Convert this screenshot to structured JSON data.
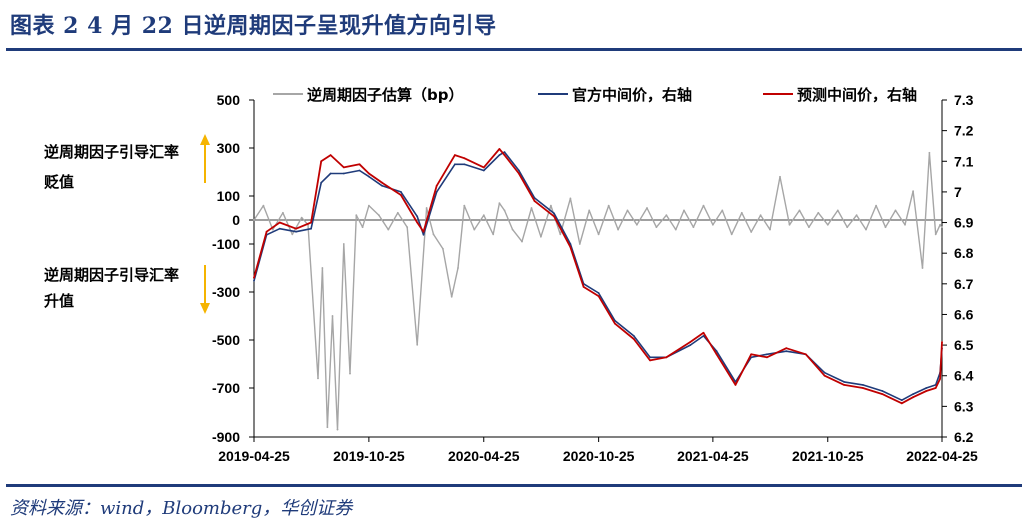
{
  "header": {
    "title": "图表 2   4 月 22 日逆周期因子呈现升值方向引导"
  },
  "footer": {
    "source": "资料来源：wind，Bloomberg，华创证券"
  },
  "chart_data": {
    "type": "line",
    "colors": {
      "gray": "#a6a6a6",
      "navy": "#1f3b7a",
      "red": "#c00000",
      "arrow": "#f5b400"
    },
    "left_axis": {
      "ticks": [
        500,
        300,
        100,
        0,
        -100,
        -300,
        -500,
        -700,
        -900
      ],
      "ylim": [
        -900,
        500
      ]
    },
    "right_axis": {
      "ticks": [
        7.3,
        7.2,
        7.1,
        7.0,
        6.9,
        6.8,
        6.7,
        6.6,
        6.5,
        6.4,
        6.3,
        6.2
      ],
      "ylim": [
        6.2,
        7.3
      ]
    },
    "x_ticks": [
      "2019-04-25",
      "2019-10-25",
      "2020-04-25",
      "2020-10-25",
      "2021-04-25",
      "2021-10-25",
      "2022-04-25"
    ],
    "legend": [
      "逆周期因子估算（bp）",
      "官方中间价，右轴",
      "预测中间价，右轴"
    ],
    "annotations": {
      "depreciation": [
        "逆周期因子引导汇率",
        "贬值"
      ],
      "appreciation": [
        "逆周期因子引导汇率",
        "升值"
      ]
    },
    "series": [
      {
        "name": "官方中间价，右轴",
        "axis": "right",
        "x": [
          "2019-04-25",
          "2019-05-15",
          "2019-06-05",
          "2019-07-01",
          "2019-07-25",
          "2019-08-10",
          "2019-08-25",
          "2019-09-15",
          "2019-10-10",
          "2019-10-25",
          "2019-11-15",
          "2019-12-15",
          "2020-01-10",
          "2020-01-20",
          "2020-02-10",
          "2020-03-10",
          "2020-03-25",
          "2020-04-25",
          "2020-05-20",
          "2020-05-28",
          "2020-06-20",
          "2020-07-15",
          "2020-08-15",
          "2020-09-10",
          "2020-10-01",
          "2020-10-25",
          "2020-11-20",
          "2020-12-20",
          "2021-01-15",
          "2021-02-10",
          "2021-03-20",
          "2021-04-10",
          "2021-05-01",
          "2021-05-31",
          "2021-06-25",
          "2021-07-20",
          "2021-08-20",
          "2021-09-20",
          "2021-10-20",
          "2021-11-20",
          "2021-12-20",
          "2022-01-20",
          "2022-02-20",
          "2022-03-10",
          "2022-03-31",
          "2022-04-15",
          "2022-04-22",
          "2022-04-25"
        ],
        "values": [
          6.71,
          6.86,
          6.88,
          6.87,
          6.88,
          7.03,
          7.06,
          7.06,
          7.07,
          7.05,
          7.02,
          7.0,
          6.92,
          6.86,
          7.0,
          7.09,
          7.09,
          7.07,
          7.12,
          7.13,
          7.07,
          6.98,
          6.93,
          6.83,
          6.7,
          6.67,
          6.58,
          6.53,
          6.46,
          6.46,
          6.5,
          6.53,
          6.48,
          6.38,
          6.46,
          6.47,
          6.48,
          6.47,
          6.41,
          6.38,
          6.37,
          6.35,
          6.32,
          6.34,
          6.36,
          6.37,
          6.41,
          6.49
        ]
      },
      {
        "name": "预测中间价，右轴",
        "axis": "right",
        "x": [
          "2019-04-25",
          "2019-05-15",
          "2019-06-05",
          "2019-07-01",
          "2019-07-25",
          "2019-08-10",
          "2019-08-25",
          "2019-09-15",
          "2019-10-10",
          "2019-10-25",
          "2019-11-15",
          "2019-12-15",
          "2020-01-10",
          "2020-01-20",
          "2020-02-10",
          "2020-03-10",
          "2020-03-25",
          "2020-04-25",
          "2020-05-20",
          "2020-05-28",
          "2020-06-20",
          "2020-07-15",
          "2020-08-15",
          "2020-09-10",
          "2020-10-01",
          "2020-10-25",
          "2020-11-20",
          "2020-12-20",
          "2021-01-15",
          "2021-02-10",
          "2021-03-20",
          "2021-04-10",
          "2021-05-01",
          "2021-05-31",
          "2021-06-25",
          "2021-07-20",
          "2021-08-20",
          "2021-09-20",
          "2021-10-20",
          "2021-11-20",
          "2021-12-20",
          "2022-01-20",
          "2022-02-20",
          "2022-03-10",
          "2022-03-31",
          "2022-04-15",
          "2022-04-22",
          "2022-04-25"
        ],
        "values": [
          6.72,
          6.87,
          6.9,
          6.88,
          6.9,
          7.1,
          7.12,
          7.08,
          7.09,
          7.06,
          7.03,
          6.99,
          6.9,
          6.87,
          7.02,
          7.12,
          7.11,
          7.08,
          7.14,
          7.12,
          7.06,
          6.97,
          6.92,
          6.82,
          6.69,
          6.66,
          6.57,
          6.52,
          6.45,
          6.46,
          6.51,
          6.54,
          6.47,
          6.37,
          6.47,
          6.46,
          6.49,
          6.47,
          6.4,
          6.37,
          6.36,
          6.34,
          6.31,
          6.33,
          6.35,
          6.36,
          6.39,
          6.51
        ]
      },
      {
        "name": "逆周期因子估算（bp）",
        "axis": "left",
        "x": [
          "2019-04-25",
          "2019-05-10",
          "2019-05-25",
          "2019-06-10",
          "2019-06-25",
          "2019-07-10",
          "2019-07-20",
          "2019-08-05",
          "2019-08-12",
          "2019-08-20",
          "2019-08-28",
          "2019-09-05",
          "2019-09-15",
          "2019-09-25",
          "2019-10-05",
          "2019-10-15",
          "2019-10-25",
          "2019-11-10",
          "2019-11-25",
          "2019-12-10",
          "2019-12-25",
          "2020-01-10",
          "2020-01-25",
          "2020-02-05",
          "2020-02-20",
          "2020-03-05",
          "2020-03-15",
          "2020-03-25",
          "2020-04-10",
          "2020-04-25",
          "2020-05-10",
          "2020-05-20",
          "2020-05-28",
          "2020-06-10",
          "2020-06-25",
          "2020-07-10",
          "2020-07-25",
          "2020-08-10",
          "2020-08-25",
          "2020-09-10",
          "2020-09-25",
          "2020-10-10",
          "2020-10-25",
          "2020-11-10",
          "2020-11-25",
          "2020-12-10",
          "2020-12-25",
          "2021-01-10",
          "2021-01-25",
          "2021-02-10",
          "2021-02-25",
          "2021-03-10",
          "2021-03-25",
          "2021-04-10",
          "2021-04-25",
          "2021-05-10",
          "2021-05-25",
          "2021-06-10",
          "2021-06-25",
          "2021-07-10",
          "2021-07-25",
          "2021-08-10",
          "2021-08-25",
          "2021-09-10",
          "2021-09-25",
          "2021-10-10",
          "2021-10-25",
          "2021-11-10",
          "2021-11-25",
          "2021-12-10",
          "2021-12-25",
          "2022-01-10",
          "2022-01-25",
          "2022-02-10",
          "2022-02-25",
          "2022-03-10",
          "2022-03-25",
          "2022-04-05",
          "2022-04-15",
          "2022-04-22",
          "2022-04-25"
        ],
        "values": [
          0,
          60,
          -40,
          30,
          -60,
          10,
          -20,
          -660,
          -200,
          -860,
          -400,
          -870,
          -100,
          -640,
          20,
          -30,
          60,
          20,
          -40,
          30,
          -30,
          -520,
          50,
          -60,
          -120,
          -320,
          -200,
          60,
          -40,
          20,
          -60,
          70,
          40,
          -40,
          -90,
          50,
          -70,
          60,
          -60,
          90,
          -100,
          40,
          -60,
          60,
          -40,
          40,
          -20,
          50,
          -30,
          20,
          -40,
          40,
          -30,
          60,
          -20,
          40,
          -60,
          30,
          -50,
          20,
          -40,
          180,
          -20,
          40,
          -30,
          30,
          -20,
          40,
          -30,
          20,
          -40,
          60,
          -30,
          40,
          -20,
          120,
          -200,
          280,
          -60,
          -20,
          -30
        ]
      }
    ]
  }
}
